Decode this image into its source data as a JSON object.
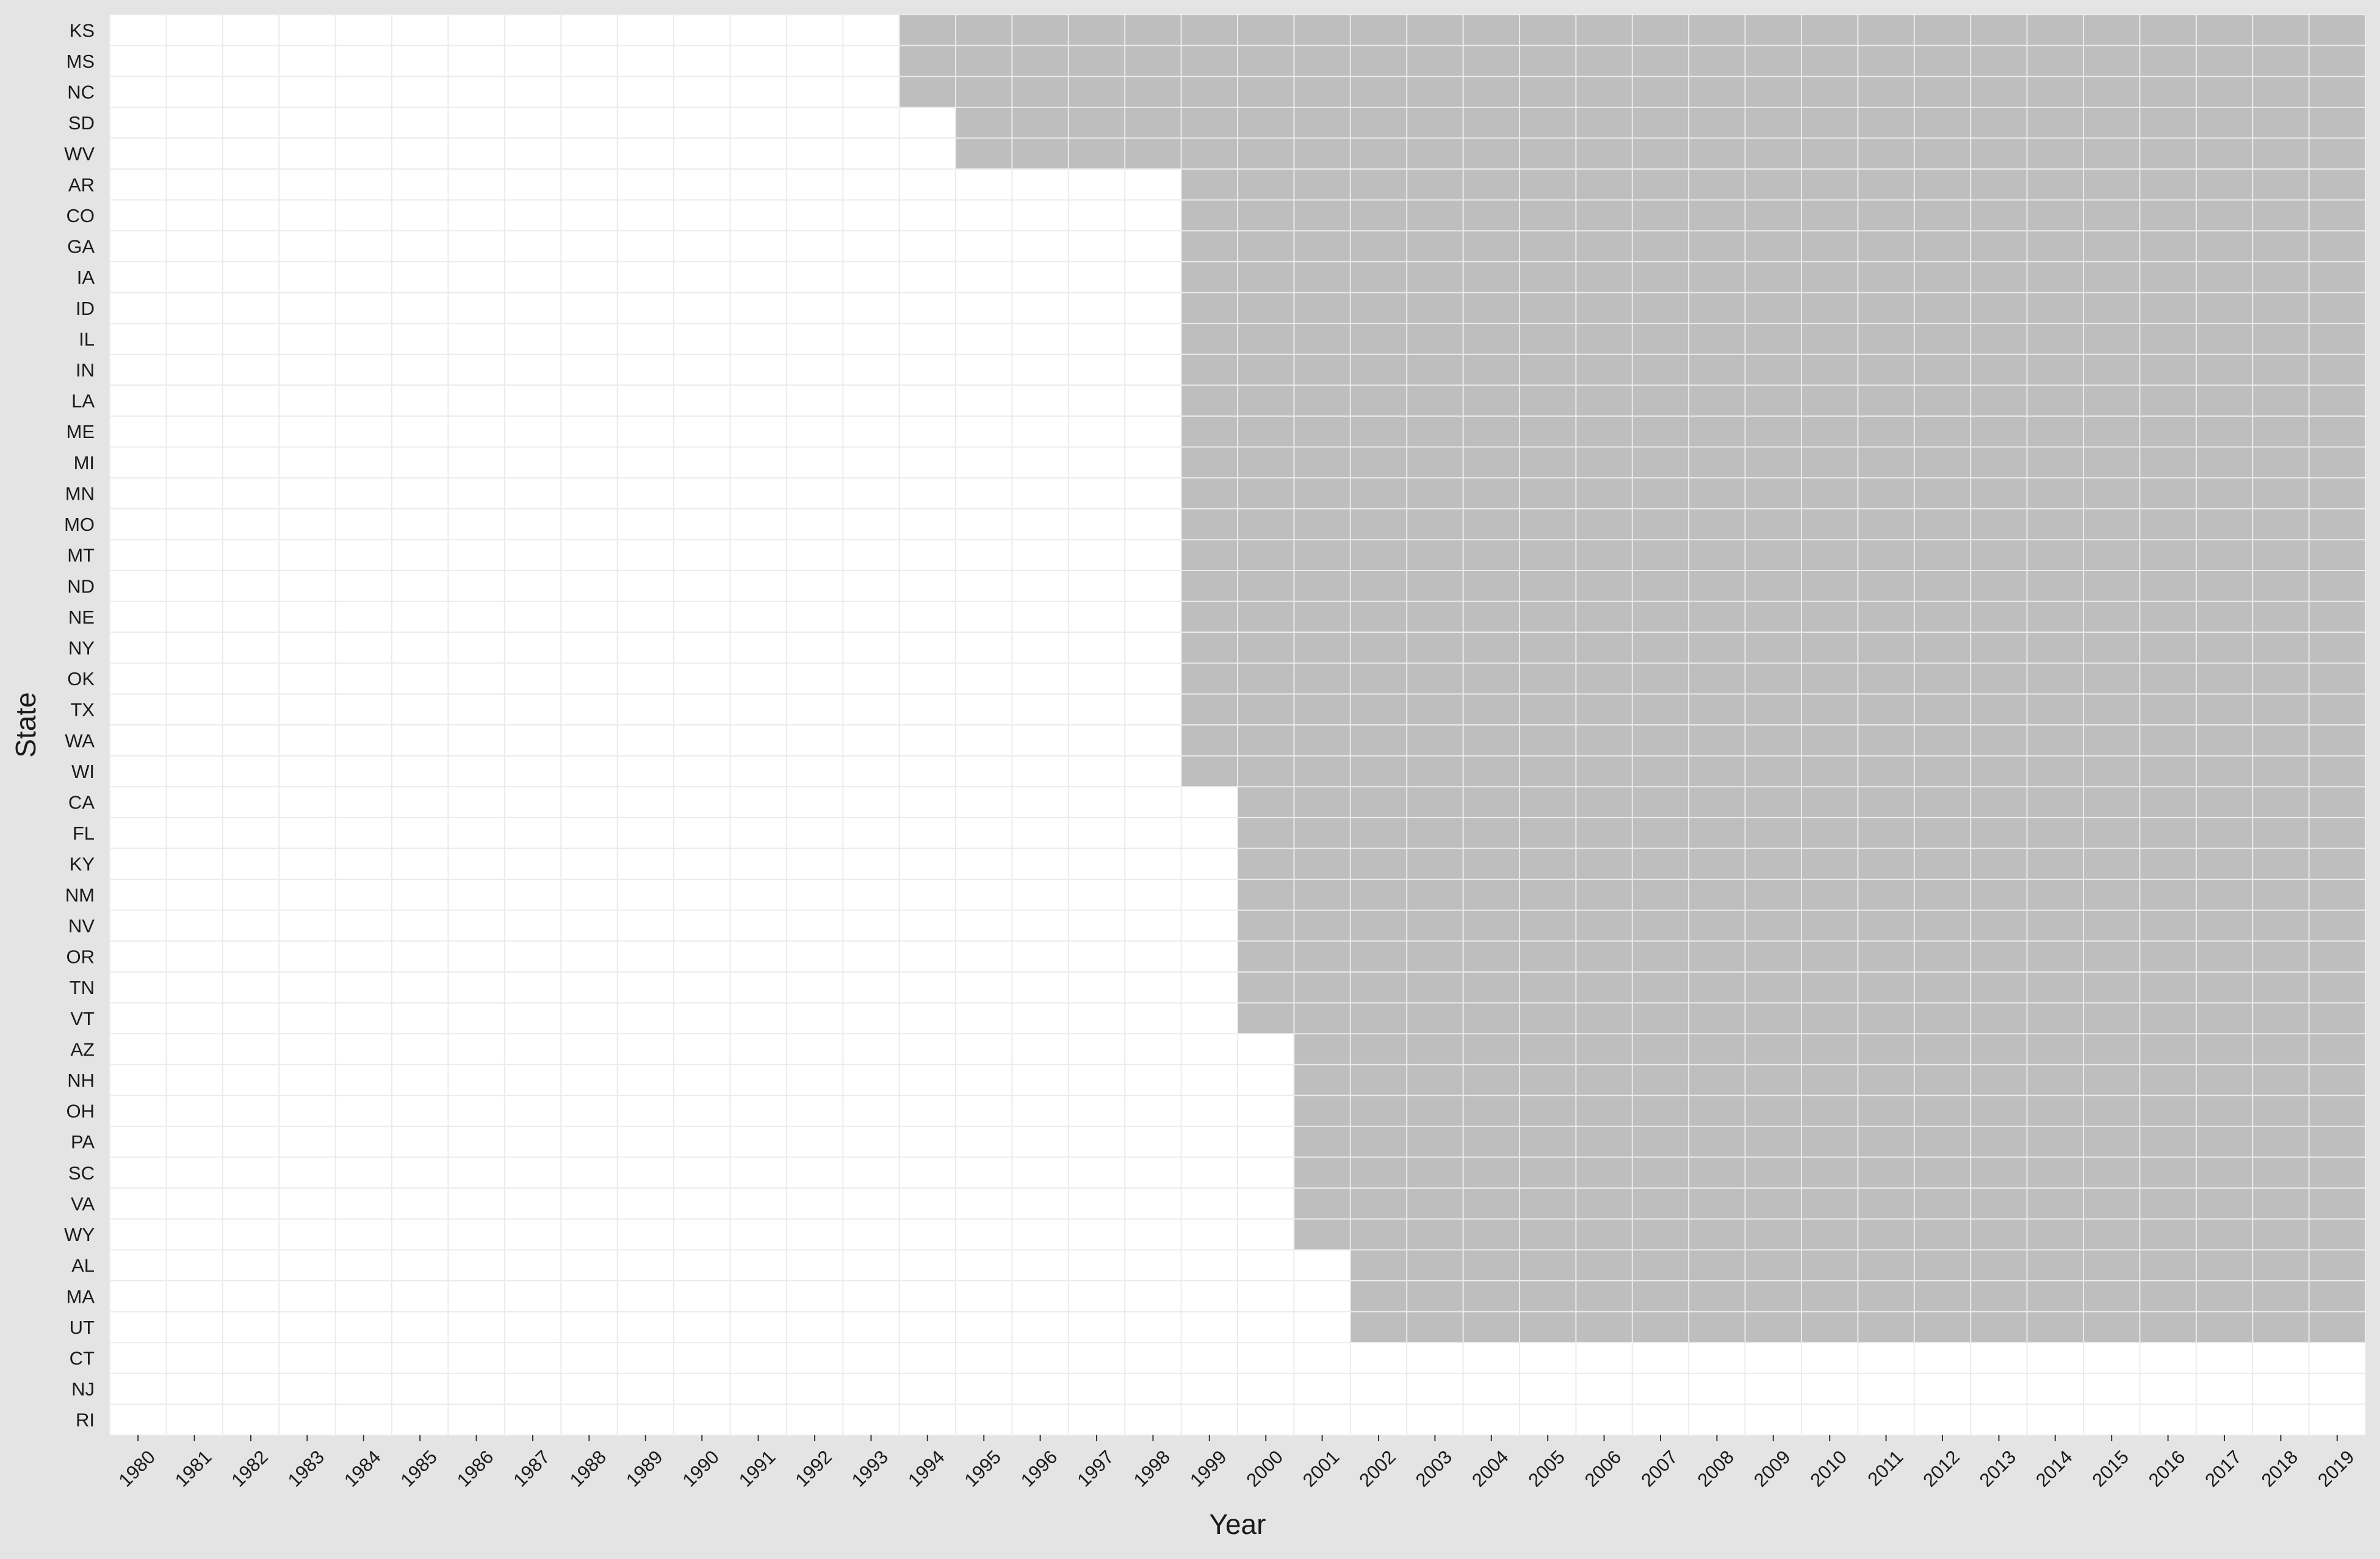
{
  "chart_data": {
    "type": "heatmap",
    "title": "",
    "xlabel": "Year",
    "ylabel": "State",
    "x": [
      "1980",
      "1981",
      "1982",
      "1983",
      "1984",
      "1985",
      "1986",
      "1987",
      "1988",
      "1989",
      "1990",
      "1991",
      "1992",
      "1993",
      "1994",
      "1995",
      "1996",
      "1997",
      "1998",
      "1999",
      "2000",
      "2001",
      "2002",
      "2003",
      "2004",
      "2005",
      "2006",
      "2007",
      "2008",
      "2009",
      "2010",
      "2011",
      "2012",
      "2013",
      "2014",
      "2015",
      "2016",
      "2017",
      "2018",
      "2019"
    ],
    "states": [
      {
        "state": "KS",
        "start_year": 1994
      },
      {
        "state": "MS",
        "start_year": 1994
      },
      {
        "state": "NC",
        "start_year": 1994
      },
      {
        "state": "SD",
        "start_year": 1995
      },
      {
        "state": "WV",
        "start_year": 1995
      },
      {
        "state": "AR",
        "start_year": 1999
      },
      {
        "state": "CO",
        "start_year": 1999
      },
      {
        "state": "GA",
        "start_year": 1999
      },
      {
        "state": "IA",
        "start_year": 1999
      },
      {
        "state": "ID",
        "start_year": 1999
      },
      {
        "state": "IL",
        "start_year": 1999
      },
      {
        "state": "IN",
        "start_year": 1999
      },
      {
        "state": "LA",
        "start_year": 1999
      },
      {
        "state": "ME",
        "start_year": 1999
      },
      {
        "state": "MI",
        "start_year": 1999
      },
      {
        "state": "MN",
        "start_year": 1999
      },
      {
        "state": "MO",
        "start_year": 1999
      },
      {
        "state": "MT",
        "start_year": 1999
      },
      {
        "state": "ND",
        "start_year": 1999
      },
      {
        "state": "NE",
        "start_year": 1999
      },
      {
        "state": "NY",
        "start_year": 1999
      },
      {
        "state": "OK",
        "start_year": 1999
      },
      {
        "state": "TX",
        "start_year": 1999
      },
      {
        "state": "WA",
        "start_year": 1999
      },
      {
        "state": "WI",
        "start_year": 1999
      },
      {
        "state": "CA",
        "start_year": 2000
      },
      {
        "state": "FL",
        "start_year": 2000
      },
      {
        "state": "KY",
        "start_year": 2000
      },
      {
        "state": "NM",
        "start_year": 2000
      },
      {
        "state": "NV",
        "start_year": 2000
      },
      {
        "state": "OR",
        "start_year": 2000
      },
      {
        "state": "TN",
        "start_year": 2000
      },
      {
        "state": "VT",
        "start_year": 2000
      },
      {
        "state": "AZ",
        "start_year": 2001
      },
      {
        "state": "NH",
        "start_year": 2001
      },
      {
        "state": "OH",
        "start_year": 2001
      },
      {
        "state": "PA",
        "start_year": 2001
      },
      {
        "state": "SC",
        "start_year": 2001
      },
      {
        "state": "VA",
        "start_year": 2001
      },
      {
        "state": "WY",
        "start_year": 2001
      },
      {
        "state": "AL",
        "start_year": 2002
      },
      {
        "state": "MA",
        "start_year": 2002
      },
      {
        "state": "UT",
        "start_year": 2002
      },
      {
        "state": "CT",
        "start_year": null
      },
      {
        "state": "NJ",
        "start_year": null
      },
      {
        "state": "RI",
        "start_year": null
      }
    ],
    "colors": {
      "filled": "#bebebe",
      "empty": "#ffffff",
      "grid": "#ebebeb",
      "outer_background": "#e4e4e4"
    },
    "grid": true,
    "legend": "none"
  }
}
